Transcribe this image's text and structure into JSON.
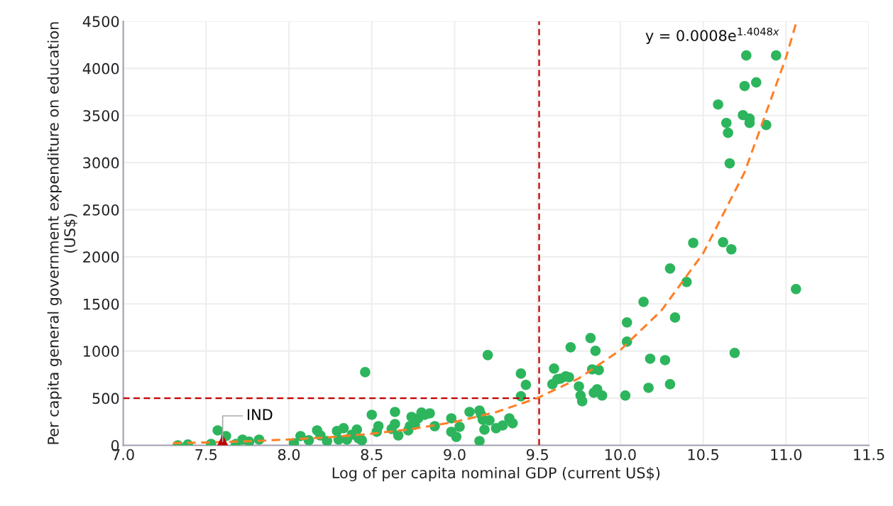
{
  "chart_data": {
    "type": "scatter",
    "xlabel": "Log of per capita nominal GDP (current US$)",
    "ylabel": "Per capita general government expenditure on education (US$)",
    "xlim": [
      7.0,
      11.5
    ],
    "xticks": [
      {
        "value": 7.0,
        "label": "7.0"
      },
      {
        "value": 7.5,
        "label": "7.5"
      },
      {
        "value": 8.0,
        "label": "8.0"
      },
      {
        "value": 8.5,
        "label": "8.5"
      },
      {
        "value": 9.0,
        "label": "9.0"
      },
      {
        "value": 9.5,
        "label": "9.5"
      },
      {
        "value": 10.0,
        "label": "10.0"
      },
      {
        "value": 10.5,
        "label": "10.5"
      },
      {
        "value": 11.0,
        "label": "11.0"
      },
      {
        "value": 11.5,
        "label": "11.5"
      }
    ],
    "ylim": [
      0,
      4500
    ],
    "yticks": [
      0,
      500,
      1000,
      1500,
      2000,
      2500,
      3000,
      3500,
      4000,
      4500
    ],
    "grid": true,
    "series": [
      {
        "type": "line",
        "color": "#c00000",
        "line_style": "dashed",
        "marker": "none",
        "x": [
          7.0,
          9.51
        ],
        "values": [
          500,
          500
        ]
      },
      {
        "type": "line",
        "color": "#c00000",
        "line_style": "dashed",
        "marker": "none",
        "x": [
          9.51,
          9.51
        ],
        "values": [
          0,
          4500
        ]
      },
      {
        "color": "#2db55d",
        "marker": "circle",
        "x": [
          7.33,
          7.39,
          7.53,
          7.57,
          7.62,
          7.68,
          7.72,
          7.76,
          7.82,
          8.03,
          8.07,
          8.12,
          8.17,
          8.19,
          8.23,
          8.29,
          8.3,
          8.33,
          8.35,
          8.38,
          8.41,
          8.42,
          8.44,
          8.46,
          8.5,
          8.54,
          8.53,
          8.62,
          8.64,
          8.64,
          8.66,
          8.72,
          8.73,
          8.74,
          8.76,
          8.78,
          8.8,
          8.82,
          8.85,
          8.88,
          8.98,
          8.98,
          9.01,
          9.03,
          9.09,
          9.15,
          9.16,
          9.15,
          9.17,
          9.18,
          9.21,
          9.2,
          9.25,
          9.29,
          9.33,
          9.35,
          9.4,
          9.4,
          9.43,
          9.59,
          9.6,
          9.62,
          9.64,
          9.67,
          9.69,
          9.7,
          9.75,
          9.76,
          9.77,
          9.82,
          9.83,
          9.85,
          9.84,
          9.86,
          9.87,
          9.89,
          10.03,
          10.04,
          10.04,
          10.14,
          10.18,
          10.17,
          10.27,
          10.3,
          10.3,
          10.33,
          10.4,
          10.44,
          10.59,
          10.62,
          10.64,
          10.65,
          10.66,
          10.67,
          10.69,
          10.74,
          10.75,
          10.76,
          10.78,
          10.78,
          10.82,
          10.88,
          10.94,
          11.06
        ],
        "values": [
          0,
          8,
          15,
          158,
          98,
          15,
          60,
          38,
          60,
          22,
          98,
          53,
          158,
          105,
          45,
          151,
          60,
          181,
          60,
          113,
          166,
          75,
          53,
          776,
          324,
          203,
          143,
          173,
          226,
          354,
          105,
          158,
          203,
          301,
          219,
          286,
          347,
          324,
          339,
          203,
          286,
          143,
          90,
          196,
          354,
          369,
          324,
          45,
          271,
          166,
          264,
          957,
          181,
          211,
          286,
          234,
          520,
          761,
          641,
          648,
          814,
          701,
          708,
          731,
          723,
          1040,
          625,
          528,
          467,
          1138,
          806,
          1002,
          558,
          595,
          799,
          528,
          528,
          1304,
          1100,
          1522,
          919,
          610,
          904,
          1876,
          648,
          1356,
          1733,
          2148,
          3617,
          2155,
          3421,
          3316,
          2992,
          2080,
          980,
          3504,
          3813,
          4137,
          3467,
          3421,
          3851,
          3399,
          4137,
          1658
        ]
      },
      {
        "type": "line",
        "color": "#ff7f27",
        "line_style": "dashed",
        "marker": "none",
        "x": [
          7.3,
          7.5,
          7.75,
          8.0,
          8.25,
          8.5,
          8.75,
          9.0,
          9.25,
          9.5,
          9.75,
          10.0,
          10.25,
          10.5,
          10.75,
          11.0,
          11.064
        ],
        "values": [
          23,
          30,
          43,
          61,
          86,
          123,
          174,
          248,
          352,
          501,
          711,
          1010,
          1435,
          2038,
          2898,
          4116,
          4500
        ]
      },
      {
        "color": "#c00000",
        "marker": "triangle",
        "x": [
          7.6
        ],
        "values": [
          40
        ]
      }
    ],
    "annotations": [
      {
        "text": "IND",
        "x": 7.6,
        "y": 40
      },
      "y = 0.0008e$^{1.4048x}$"
    ]
  }
}
